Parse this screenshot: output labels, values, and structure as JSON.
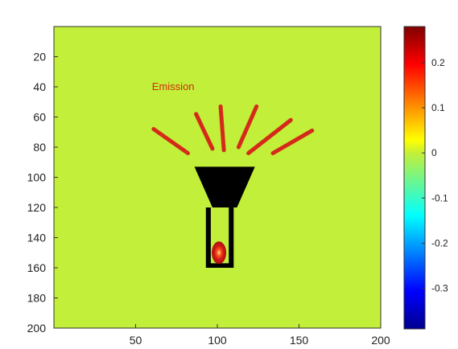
{
  "chart_data": {
    "type": "heatmap",
    "xlim": [
      0,
      200
    ],
    "ylim": [
      200,
      0
    ],
    "xticks": [
      50,
      100,
      150,
      200
    ],
    "yticks": [
      20,
      40,
      60,
      80,
      100,
      120,
      140,
      160,
      180,
      200
    ],
    "background_value": 0,
    "annotation": {
      "text": "Emission",
      "x": 60,
      "y": 40,
      "color": "#d42a10"
    },
    "colorbar": {
      "min": -0.39,
      "max": 0.28,
      "ticks": [
        0.2,
        0.1,
        0,
        -0.1,
        -0.2,
        -0.3
      ],
      "tick_labels": [
        "0.2",
        "0.1",
        "0",
        "-0.1",
        "-0.2",
        "-0.3"
      ]
    },
    "lamp": {
      "head_polygon": [
        [
          86,
          93
        ],
        [
          123,
          93
        ],
        [
          112,
          120
        ],
        [
          97,
          120
        ]
      ],
      "tube_outer": {
        "x0": 93,
        "x1": 110,
        "y0": 120,
        "y1": 160
      },
      "tube_wall": 3
    },
    "rays": [
      {
        "x1": 61,
        "y1": 68,
        "x2": 82,
        "y2": 84
      },
      {
        "x1": 87,
        "y1": 58,
        "x2": 97,
        "y2": 81
      },
      {
        "x1": 102,
        "y1": 53,
        "x2": 104,
        "y2": 82
      },
      {
        "x1": 124,
        "y1": 53,
        "x2": 113,
        "y2": 80
      },
      {
        "x1": 145,
        "y1": 62,
        "x2": 119,
        "y2": 84
      },
      {
        "x1": 158,
        "y1": 69,
        "x2": 134,
        "y2": 84
      }
    ],
    "source": {
      "x": 101,
      "y": 150,
      "peak": 0.28
    }
  },
  "colors": {
    "field": "#c2ef39",
    "lamp": "#000000",
    "ray": "#d42a1a"
  }
}
